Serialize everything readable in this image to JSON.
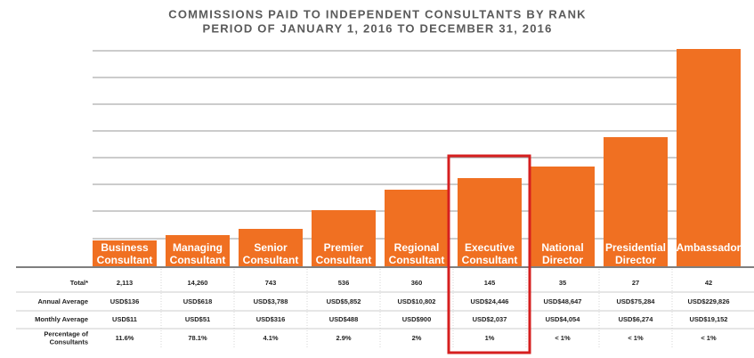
{
  "title": "COMMISSIONS PAID TO INDEPENDENT CONSULTANTS BY RANK",
  "subtitle": "PERIOD OF JANUARY 1, 2016 TO DECEMBER 31, 2016",
  "categories": [
    [
      "Business",
      "Consultant"
    ],
    [
      "Managing",
      "Consultant"
    ],
    [
      "Senior",
      "Consultant"
    ],
    [
      "Premier",
      "Consultant"
    ],
    [
      "Regional",
      "Consultant"
    ],
    [
      "Executive",
      "Consultant"
    ],
    [
      "National",
      "Director"
    ],
    [
      "Presidential",
      "Director"
    ],
    [
      "Ambassador"
    ]
  ],
  "table": {
    "rows": [
      {
        "label": [
          "Total*"
        ],
        "values": [
          "2,113",
          "14,260",
          "743",
          "536",
          "360",
          "145",
          "35",
          "27",
          "42"
        ]
      },
      {
        "label": [
          "Annual Average"
        ],
        "values": [
          "USD$136",
          "USD$618",
          "USD$3,788",
          "USD$5,852",
          "USD$10,802",
          "USD$24,446",
          "USD$48,647",
          "USD$75,284",
          "USD$229,826"
        ]
      },
      {
        "label": [
          "Monthly Average"
        ],
        "values": [
          "USD$11",
          "USD$51",
          "USD$316",
          "USD$488",
          "USD$900",
          "USD$2,037",
          "USD$4,054",
          "USD$6,274",
          "USD$19,152"
        ]
      },
      {
        "label": [
          "Percentage of",
          "Consultants"
        ],
        "values": [
          "11.6%",
          "78.1%",
          "4.1%",
          "2.9%",
          "2%",
          "1%",
          "< 1%",
          "< 1%",
          "< 1%"
        ]
      }
    ]
  }
}
